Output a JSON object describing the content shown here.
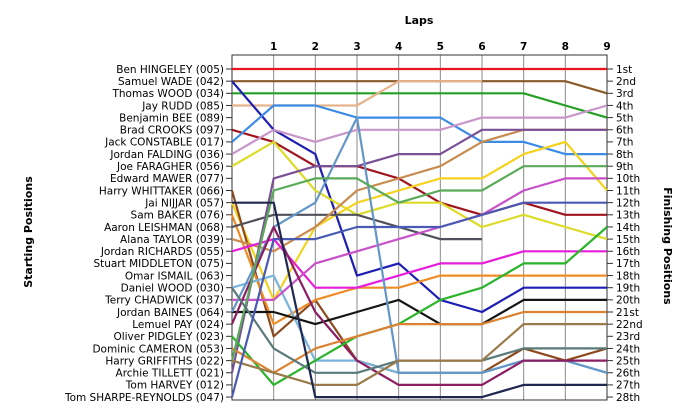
{
  "chart_data": {
    "type": "line",
    "title": "",
    "xlabel": "Laps",
    "ylabel_left": "Starting Positions",
    "ylabel_right": "Finishing Positions",
    "x": [
      0,
      1,
      2,
      3,
      4,
      5,
      6,
      7,
      8,
      9
    ],
    "x_tick_labels": [
      "1",
      "2",
      "3",
      "4",
      "5",
      "6",
      "7",
      "8",
      "9"
    ],
    "ylim": [
      1,
      28
    ],
    "y_inverted": true,
    "grid": true,
    "starting_labels": [
      "Ben HINGELEY (005)",
      "Samuel WADE (042)",
      "Thomas WOOD (034)",
      "Jay RUDD (085)",
      "Benjamin BEE (089)",
      "Brad CROOKS (097)",
      "Jack CONSTABLE (017)",
      "Jordan FALDING (036)",
      "Joe FARAGHER (056)",
      "Edward MAWER (077)",
      "Harry WHITTAKER (066)",
      "Jai NIJJAR (057)",
      "Sam BAKER (076)",
      "Aaron LEISHMAN (068)",
      "Alana TAYLOR (039)",
      "Jordan RICHARDS (055)",
      "Stuart MIDDLETON (075)",
      "Omar ISMAIL (063)",
      "Daniel WOOD (030)",
      "Terry CHADWICK (037)",
      "Jordan BAINES (064)",
      "Lemuel PAY (024)",
      "Oliver PIDGLEY (023)",
      "Dominic CAMERON (053)",
      "Harry GRIFFITHS (022)",
      "Archie TILLETT (021)",
      "Tom HARVEY (012)",
      "Tom SHARPE-REYNOLDS (047)"
    ],
    "finishing_labels": [
      "1st",
      "2nd",
      "3rd",
      "4th",
      "5th",
      "6th",
      "7th",
      "8th",
      "9th",
      "10th",
      "11th",
      "12th",
      "13th",
      "14th",
      "15th",
      "16th",
      "17th",
      "18th",
      "19th",
      "20th",
      "21st",
      "22nd",
      "23rd",
      "24th",
      "25th",
      "26th",
      "27th",
      "28th"
    ],
    "series": [
      {
        "color": "#e8141e",
        "positions": [
          1,
          1,
          1,
          1,
          1,
          1,
          1,
          1,
          1,
          1
        ]
      },
      {
        "color": "#8b5a2b",
        "positions": [
          2,
          2,
          2,
          2,
          2,
          2,
          2,
          2,
          2,
          3
        ]
      },
      {
        "color": "#23a023",
        "positions": [
          3,
          3,
          3,
          3,
          3,
          3,
          3,
          3,
          4,
          5
        ]
      },
      {
        "color": "#e6b48c",
        "positions": [
          4,
          4,
          4,
          4,
          2,
          2,
          2,
          null,
          null,
          null
        ]
      },
      {
        "color": "#1e1eb4",
        "positions": [
          2,
          6,
          8,
          18,
          17,
          20,
          21,
          19,
          19,
          19
        ]
      },
      {
        "color": "#a0141e",
        "positions": [
          6,
          7,
          9,
          9,
          10,
          12,
          13,
          12,
          13,
          13
        ]
      },
      {
        "color": "#3c8ce6",
        "positions": [
          7,
          4,
          4,
          5,
          5,
          5,
          7,
          7,
          8,
          8
        ]
      },
      {
        "color": "#c896c8",
        "positions": [
          8,
          6,
          7,
          6,
          6,
          6,
          5,
          5,
          5,
          4
        ]
      },
      {
        "color": "#dcdc28",
        "positions": [
          9,
          7,
          11,
          13,
          12,
          12,
          14,
          13,
          14,
          15
        ]
      },
      {
        "color": "#f5d21e",
        "positions": [
          12,
          20,
          14,
          12,
          11,
          10,
          10,
          8,
          7,
          11
        ]
      },
      {
        "color": "#8c4a1e",
        "positions": [
          11,
          23,
          20,
          25,
          26,
          26,
          26,
          24,
          25,
          24
        ]
      },
      {
        "color": "#f08c28",
        "positions": [
          13,
          22,
          20,
          19,
          19,
          18,
          18,
          18,
          18,
          18
        ]
      },
      {
        "color": "#50505a",
        "positions": [
          14,
          13,
          13,
          13,
          14,
          15,
          15,
          null,
          null,
          null
        ]
      },
      {
        "color": "#c88c50",
        "positions": [
          15,
          16,
          14,
          11,
          10,
          9,
          7,
          6,
          6,
          6
        ]
      },
      {
        "color": "#e61edc",
        "positions": [
          16,
          15,
          19,
          19,
          18,
          17,
          17,
          16,
          16,
          16
        ]
      },
      {
        "color": "#78b4dc",
        "positions": [
          19,
          18,
          25,
          25,
          26,
          26,
          26,
          25,
          25,
          26
        ]
      },
      {
        "color": "#7a5096",
        "positions": [
          26,
          10,
          9,
          9,
          8,
          8,
          6,
          6,
          6,
          6
        ]
      },
      {
        "color": "#141414",
        "positions": [
          21,
          21,
          22,
          21,
          20,
          22,
          22,
          20,
          20,
          20
        ]
      },
      {
        "color": "#c850c8",
        "positions": [
          20,
          20,
          17,
          16,
          15,
          14,
          13,
          11,
          10,
          10
        ]
      },
      {
        "color": "#6496c8",
        "positions": [
          21,
          14,
          12,
          5,
          26,
          26,
          26,
          25,
          25,
          26
        ]
      },
      {
        "color": "#8c1e64",
        "positions": [
          22,
          14,
          21,
          25,
          27,
          27,
          27,
          25,
          25,
          25
        ]
      },
      {
        "color": "#2ab42a",
        "positions": [
          23,
          27,
          25,
          23,
          22,
          20,
          19,
          17,
          17,
          14
        ]
      },
      {
        "color": "#dc8232",
        "positions": [
          24,
          26,
          24,
          23,
          22,
          22,
          22,
          21,
          21,
          21
        ]
      },
      {
        "color": "#5aaa5a",
        "positions": [
          25,
          11,
          10,
          10,
          12,
          11,
          11,
          9,
          9,
          9
        ]
      },
      {
        "color": "#5a7a7a",
        "positions": [
          19,
          24,
          26,
          26,
          25,
          25,
          25,
          24,
          24,
          24
        ]
      },
      {
        "color": "#9a7a4a",
        "positions": [
          25,
          26,
          27,
          27,
          25,
          25,
          25,
          22,
          22,
          22
        ]
      },
      {
        "color": "#4a5ab4",
        "positions": [
          28,
          15,
          15,
          14,
          14,
          14,
          13,
          12,
          12,
          12
        ]
      },
      {
        "color": "#1e2850",
        "positions": [
          12,
          12,
          28,
          28,
          28,
          28,
          28,
          27,
          27,
          27
        ]
      }
    ]
  }
}
